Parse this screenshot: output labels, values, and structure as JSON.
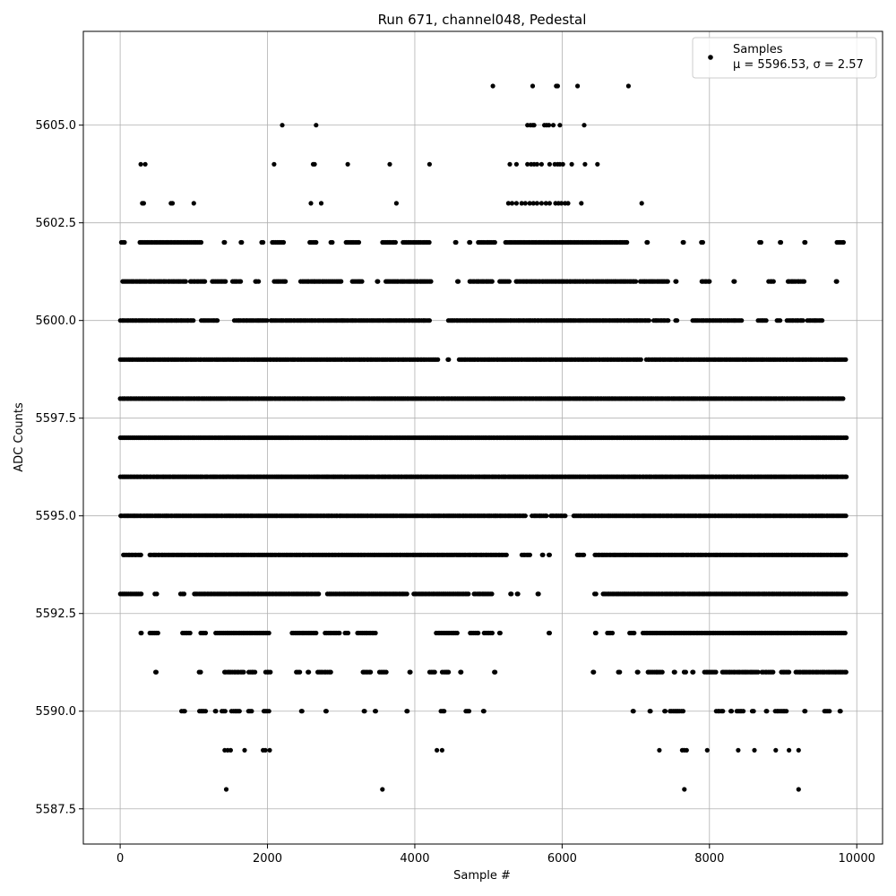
{
  "chart_data": {
    "type": "scatter",
    "title": "Run 671, channel048, Pedestal",
    "xlabel": "Sample #",
    "ylabel": "ADC Counts",
    "xlim": [
      -500,
      10350
    ],
    "ylim": [
      5586.6,
      5607.4
    ],
    "xticks": [
      0,
      2000,
      4000,
      6000,
      8000,
      10000
    ],
    "xtick_labels": [
      "0",
      "2000",
      "4000",
      "6000",
      "8000",
      "10000"
    ],
    "yticks": [
      5587.5,
      5590.0,
      5592.5,
      5595.0,
      5597.5,
      5600.0,
      5602.5,
      5605.0
    ],
    "ytick_labels": [
      "5587.5",
      "5590.0",
      "5592.5",
      "5595.0",
      "5597.5",
      "5600.0",
      "5602.5",
      "5605.0"
    ],
    "grid": true,
    "legend_position": "top-right",
    "marker_color": "#000000",
    "series": [
      {
        "name": "Samples",
        "stats_label": "μ = 5596.53, σ = 2.57",
        "x_range": [
          0,
          9860
        ],
        "points_by_level": [
          {
            "y": 5606,
            "x": [
              5060,
              5600,
              5920,
              5940,
              6210,
              6900
            ]
          },
          {
            "y": 5605,
            "x": [
              2200,
              2660,
              5530,
              5570,
              5600,
              5620,
              5760,
              5790,
              5820,
              5880,
              5970,
              6300
            ]
          },
          {
            "y": 5604,
            "x": [
              280,
              340,
              2090,
              2620,
              2640,
              3090,
              3660,
              4200,
              5290,
              5380,
              5530,
              5580,
              5620,
              5660,
              5720,
              5830,
              5900,
              5940,
              5970,
              6010,
              6130,
              6310,
              6480
            ]
          },
          {
            "y": 5603,
            "x": [
              300,
              320,
              690,
              710,
              1000,
              2590,
              2730,
              3750,
              5270,
              5320,
              5380,
              5450,
              5500,
              5560,
              5610,
              5660,
              5720,
              5780,
              5830,
              5910,
              5950,
              5990,
              6040,
              6080,
              6260,
              7080
            ]
          },
          {
            "y": 5602,
            "x_ranges": [
              [
                10,
                60
              ],
              [
                260,
                1110
              ],
              [
                1410,
                1420
              ],
              [
                1640,
                1650
              ],
              [
                1920,
                1940
              ],
              [
                2060,
                2230
              ],
              [
                2570,
                2660
              ],
              [
                2860,
                2880
              ],
              [
                3060,
                3240
              ],
              [
                3560,
                3750
              ],
              [
                3840,
                4200
              ],
              [
                4550,
                4560
              ],
              [
                4740,
                4750
              ],
              [
                4860,
                5100
              ],
              [
                5230,
                6900
              ],
              [
                7150,
                7160
              ],
              [
                7640,
                7650
              ],
              [
                7890,
                7910
              ],
              [
                8680,
                8700
              ],
              [
                8960,
                8970
              ],
              [
                9290,
                9300
              ],
              [
                9730,
                9820
              ]
            ]
          },
          {
            "y": 5601,
            "x_ranges": [
              [
                30,
                900
              ],
              [
                950,
                1150
              ],
              [
                1250,
                1430
              ],
              [
                1520,
                1640
              ],
              [
                1830,
                1890
              ],
              [
                2090,
                2250
              ],
              [
                2450,
                3000
              ],
              [
                3150,
                3300
              ],
              [
                3490,
                3500
              ],
              [
                3600,
                4220
              ],
              [
                4580,
                4590
              ],
              [
                4740,
                5050
              ],
              [
                5150,
                5290
              ],
              [
                5370,
                7000
              ],
              [
                7060,
                7450
              ],
              [
                7540,
                7550
              ],
              [
                7890,
                8000
              ],
              [
                8330,
                8340
              ],
              [
                8800,
                8870
              ],
              [
                9060,
                9300
              ],
              [
                9720,
                9730
              ]
            ]
          },
          {
            "y": 5600,
            "x_ranges": [
              [
                0,
                1000
              ],
              [
                1100,
                1320
              ],
              [
                1550,
                2000
              ],
              [
                2040,
                4200
              ],
              [
                4450,
                7180
              ],
              [
                7240,
                7440
              ],
              [
                7540,
                7560
              ],
              [
                7770,
                8440
              ],
              [
                8660,
                8770
              ],
              [
                8910,
                8970
              ],
              [
                9050,
                9280
              ],
              [
                9330,
                9530
              ]
            ]
          },
          {
            "y": 5599,
            "x_ranges": [
              [
                0,
                4320
              ],
              [
                4450,
                4460
              ],
              [
                4600,
                7070
              ],
              [
                7140,
                9850
              ]
            ]
          },
          {
            "y": 5598,
            "x_ranges": [
              [
                0,
                9830
              ]
            ]
          },
          {
            "y": 5597,
            "x_ranges": [
              [
                0,
                9860
              ]
            ]
          },
          {
            "y": 5596,
            "x_ranges": [
              [
                0,
                9860
              ]
            ]
          },
          {
            "y": 5595,
            "x_ranges": [
              [
                0,
                5500
              ],
              [
                5590,
                5800
              ],
              [
                5840,
                6050
              ],
              [
                6150,
                9860
              ]
            ]
          },
          {
            "y": 5594,
            "x_ranges": [
              [
                40,
                300
              ],
              [
                400,
                5250
              ],
              [
                5450,
                5570
              ],
              [
                5730,
                5740
              ],
              [
                5820,
                5830
              ],
              [
                6200,
                6300
              ],
              [
                6440,
                9860
              ]
            ]
          },
          {
            "y": 5593,
            "x_ranges": [
              [
                0,
                300
              ],
              [
                470,
                500
              ],
              [
                820,
                870
              ],
              [
                1000,
                2700
              ],
              [
                2810,
                3900
              ],
              [
                3980,
                4740
              ],
              [
                4800,
                5060
              ],
              [
                5300,
                5310
              ],
              [
                5390,
                5400
              ],
              [
                5670,
                5680
              ],
              [
                6440,
                6460
              ],
              [
                6550,
                9860
              ]
            ]
          },
          {
            "y": 5592,
            "x_ranges": [
              [
                280,
                290
              ],
              [
                400,
                530
              ],
              [
                840,
                950
              ],
              [
                1090,
                1160
              ],
              [
                1290,
                2030
              ],
              [
                2330,
                2660
              ],
              [
                2780,
                2990
              ],
              [
                3050,
                3100
              ],
              [
                3220,
                3480
              ],
              [
                4290,
                4590
              ],
              [
                4750,
                4860
              ],
              [
                4940,
                5060
              ],
              [
                5150,
                5160
              ],
              [
                5820,
                5830
              ],
              [
                6450,
                6460
              ],
              [
                6610,
                6690
              ],
              [
                6910,
                6990
              ],
              [
                7090,
                9860
              ]
            ]
          },
          {
            "y": 5591,
            "x_ranges": [
              [
                480,
                490
              ],
              [
                1070,
                1110
              ],
              [
                1410,
                1690
              ],
              [
                1740,
                1830
              ],
              [
                1970,
                2040
              ],
              [
                2390,
                2450
              ],
              [
                2550,
                2560
              ],
              [
                2680,
                2870
              ],
              [
                3290,
                3400
              ],
              [
                3520,
                3620
              ],
              [
                3930,
                3940
              ],
              [
                4200,
                4270
              ],
              [
                4370,
                4460
              ],
              [
                4620,
                4630
              ],
              [
                5080,
                5090
              ],
              [
                6420,
                6430
              ],
              [
                6760,
                6790
              ],
              [
                7020,
                7030
              ],
              [
                7160,
                7360
              ],
              [
                7520,
                7530
              ],
              [
                7650,
                7680
              ],
              [
                7770,
                7780
              ],
              [
                7930,
                8090
              ],
              [
                8170,
                8660
              ],
              [
                8710,
                8870
              ],
              [
                8970,
                9080
              ],
              [
                9170,
                9860
              ]
            ]
          },
          {
            "y": 5590,
            "x_ranges": [
              [
                830,
                890
              ],
              [
                1070,
                1160
              ],
              [
                1290,
                1300
              ],
              [
                1380,
                1430
              ],
              [
                1510,
                1640
              ],
              [
                1740,
                1790
              ],
              [
                1950,
                2020
              ],
              [
                2460,
                2470
              ],
              [
                2790,
                2800
              ],
              [
                3310,
                3320
              ],
              [
                3460,
                3470
              ],
              [
                3890,
                3900
              ],
              [
                4350,
                4400
              ],
              [
                4690,
                4740
              ],
              [
                4930,
                4940
              ],
              [
                6960,
                6970
              ],
              [
                7190,
                7200
              ],
              [
                7390,
                7400
              ],
              [
                7460,
                7650
              ],
              [
                8090,
                8190
              ],
              [
                8290,
                8300
              ],
              [
                8370,
                8460
              ],
              [
                8580,
                8600
              ],
              [
                8770,
                8780
              ],
              [
                8890,
                9060
              ],
              [
                9290,
                9300
              ],
              [
                9560,
                9630
              ],
              [
                9770,
                9780
              ]
            ]
          },
          {
            "y": 5589,
            "x": [
              1420,
              1460,
              1500,
              1690,
              1940,
              1970,
              2030,
              4300,
              4370,
              7320,
              7630,
              7660,
              7690,
              7970,
              8390,
              8610,
              8900,
              9080,
              9210
            ]
          },
          {
            "y": 5588,
            "x": [
              1440,
              3560,
              7660,
              9210
            ]
          }
        ]
      }
    ]
  }
}
